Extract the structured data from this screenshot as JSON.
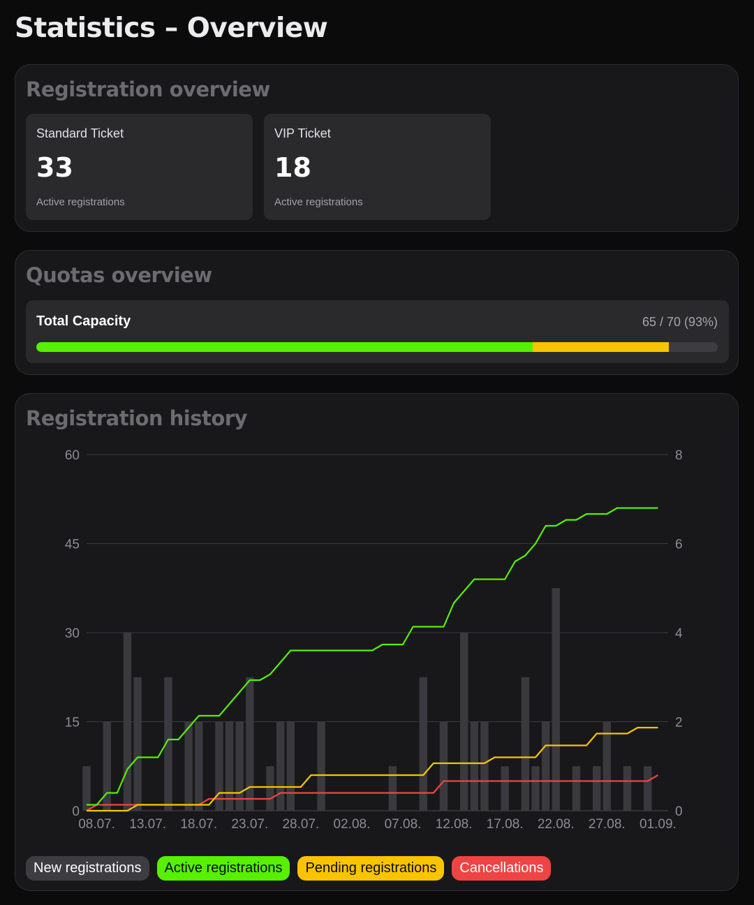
{
  "page_title": "Statistics – Overview",
  "registration_overview": {
    "title": "Registration overview",
    "cards": [
      {
        "label": "Standard Ticket",
        "value": "33",
        "sub": "Active registrations"
      },
      {
        "label": "VIP Ticket",
        "value": "18",
        "sub": "Active registrations"
      }
    ]
  },
  "quotas_overview": {
    "title": "Quotas overview",
    "label": "Total Capacity",
    "value_text": "65 / 70 (93%)",
    "capacity": 70,
    "active": 51,
    "pending": 14,
    "colors": {
      "active": "#56f000",
      "pending": "#f8c400",
      "track": "#3d3d41"
    }
  },
  "history": {
    "title": "Registration history",
    "legend": [
      {
        "label": "New registrations",
        "color": "#3d3d41",
        "text_color": "#ffffff"
      },
      {
        "label": "Active registrations",
        "color": "#56f000",
        "text_color": "#0b0b0c"
      },
      {
        "label": "Pending registrations",
        "color": "#f8c400",
        "text_color": "#0b0b0c"
      },
      {
        "label": "Cancellations",
        "color": "#ef4444",
        "text_color": "#ffffff"
      }
    ]
  },
  "chart_data": {
    "type": "bar",
    "x_start": "2024-07-07",
    "x_end": "2024-09-02",
    "x_tick_labels": [
      "08.07.",
      "13.07.",
      "18.07.",
      "23.07.",
      "28.07.",
      "02.08.",
      "07.08.",
      "12.08.",
      "17.08.",
      "22.08.",
      "27.08.",
      "01.09."
    ],
    "x_tick_dates": [
      "2024-07-08",
      "2024-07-13",
      "2024-07-18",
      "2024-07-23",
      "2024-07-28",
      "2024-08-02",
      "2024-08-07",
      "2024-08-12",
      "2024-08-17",
      "2024-08-22",
      "2024-08-27",
      "2024-09-01"
    ],
    "y_left": {
      "min": 0,
      "max": 60,
      "ticks": [
        0,
        15,
        30,
        45,
        60
      ]
    },
    "y_right": {
      "min": 0,
      "max": 8,
      "ticks": [
        0,
        2,
        4,
        6,
        8
      ]
    },
    "grid": true,
    "bars": {
      "name": "New registrations",
      "axis": "right",
      "color": "#3a3a3e",
      "points": [
        [
          "2024-07-07",
          1
        ],
        [
          "2024-07-09",
          2
        ],
        [
          "2024-07-11",
          4
        ],
        [
          "2024-07-12",
          3
        ],
        [
          "2024-07-15",
          3
        ],
        [
          "2024-07-17",
          2
        ],
        [
          "2024-07-18",
          2
        ],
        [
          "2024-07-20",
          2
        ],
        [
          "2024-07-21",
          2
        ],
        [
          "2024-07-22",
          2
        ],
        [
          "2024-07-23",
          3
        ],
        [
          "2024-07-25",
          1
        ],
        [
          "2024-07-26",
          2
        ],
        [
          "2024-07-27",
          2
        ],
        [
          "2024-07-30",
          2
        ],
        [
          "2024-08-06",
          1
        ],
        [
          "2024-08-09",
          3
        ],
        [
          "2024-08-11",
          2
        ],
        [
          "2024-08-13",
          4
        ],
        [
          "2024-08-14",
          2
        ],
        [
          "2024-08-15",
          2
        ],
        [
          "2024-08-17",
          1
        ],
        [
          "2024-08-19",
          3
        ],
        [
          "2024-08-20",
          1
        ],
        [
          "2024-08-21",
          2
        ],
        [
          "2024-08-22",
          5
        ],
        [
          "2024-08-24",
          1
        ],
        [
          "2024-08-26",
          1
        ],
        [
          "2024-08-27",
          2
        ],
        [
          "2024-08-29",
          1
        ],
        [
          "2024-08-31",
          1
        ]
      ]
    },
    "series": [
      {
        "name": "Active registrations",
        "axis": "left",
        "color": "#56f000",
        "points": [
          [
            "2024-07-07",
            1
          ],
          [
            "2024-07-08",
            1
          ],
          [
            "2024-07-09",
            3
          ],
          [
            "2024-07-10",
            3
          ],
          [
            "2024-07-11",
            7
          ],
          [
            "2024-07-12",
            9
          ],
          [
            "2024-07-14",
            9
          ],
          [
            "2024-07-15",
            12
          ],
          [
            "2024-07-16",
            12
          ],
          [
            "2024-07-17",
            14
          ],
          [
            "2024-07-18",
            16
          ],
          [
            "2024-07-20",
            16
          ],
          [
            "2024-07-21",
            18
          ],
          [
            "2024-07-22",
            20
          ],
          [
            "2024-07-23",
            22
          ],
          [
            "2024-07-24",
            22
          ],
          [
            "2024-07-25",
            23
          ],
          [
            "2024-07-26",
            25
          ],
          [
            "2024-07-27",
            27
          ],
          [
            "2024-07-28",
            27
          ],
          [
            "2024-08-04",
            27
          ],
          [
            "2024-08-05",
            28
          ],
          [
            "2024-08-07",
            28
          ],
          [
            "2024-08-08",
            31
          ],
          [
            "2024-08-11",
            31
          ],
          [
            "2024-08-12",
            35
          ],
          [
            "2024-08-13",
            37
          ],
          [
            "2024-08-14",
            39
          ],
          [
            "2024-08-17",
            39
          ],
          [
            "2024-08-18",
            42
          ],
          [
            "2024-08-19",
            43
          ],
          [
            "2024-08-20",
            45
          ],
          [
            "2024-08-21",
            48
          ],
          [
            "2024-08-22",
            48
          ],
          [
            "2024-08-23",
            49
          ],
          [
            "2024-08-24",
            49
          ],
          [
            "2024-08-25",
            50
          ],
          [
            "2024-08-27",
            50
          ],
          [
            "2024-08-28",
            51
          ],
          [
            "2024-09-01",
            51
          ]
        ]
      },
      {
        "name": "Pending registrations",
        "axis": "left",
        "color": "#f8c400",
        "points": [
          [
            "2024-07-07",
            0
          ],
          [
            "2024-07-11",
            0
          ],
          [
            "2024-07-12",
            1
          ],
          [
            "2024-07-19",
            1
          ],
          [
            "2024-07-20",
            3
          ],
          [
            "2024-07-22",
            3
          ],
          [
            "2024-07-23",
            4
          ],
          [
            "2024-07-28",
            4
          ],
          [
            "2024-07-29",
            6
          ],
          [
            "2024-08-09",
            6
          ],
          [
            "2024-08-10",
            8
          ],
          [
            "2024-08-15",
            8
          ],
          [
            "2024-08-16",
            9
          ],
          [
            "2024-08-20",
            9
          ],
          [
            "2024-08-21",
            11
          ],
          [
            "2024-08-25",
            11
          ],
          [
            "2024-08-26",
            13
          ],
          [
            "2024-08-29",
            13
          ],
          [
            "2024-08-30",
            14
          ],
          [
            "2024-09-01",
            14
          ]
        ]
      },
      {
        "name": "Cancellations",
        "axis": "left",
        "color": "#ef4444",
        "points": [
          [
            "2024-07-07",
            0
          ],
          [
            "2024-07-08",
            1
          ],
          [
            "2024-07-18",
            1
          ],
          [
            "2024-07-19",
            2
          ],
          [
            "2024-07-25",
            2
          ],
          [
            "2024-07-26",
            3
          ],
          [
            "2024-08-10",
            3
          ],
          [
            "2024-08-11",
            5
          ],
          [
            "2024-08-31",
            5
          ],
          [
            "2024-09-01",
            6
          ]
        ]
      }
    ]
  }
}
